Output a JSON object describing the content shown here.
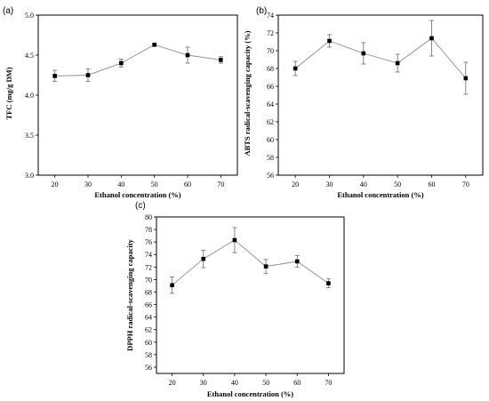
{
  "figure": {
    "marker_color": "#000000",
    "line_color": "#8c8c8c",
    "error_bar_color": "#555555"
  },
  "chart_data": [
    {
      "panel": "(a)",
      "type": "line",
      "xlabel": "Ethanol concentration (%)",
      "ylabel": "TFC (mg/g DM)",
      "xlim": [
        15,
        75
      ],
      "ylim": [
        3.0,
        5.0
      ],
      "x_ticks": [
        20,
        30,
        40,
        50,
        60,
        70
      ],
      "y_ticks": [
        3.0,
        3.5,
        4.0,
        4.5,
        5.0
      ],
      "y_tick_labels": [
        "3.0",
        "3.5",
        "4.0",
        "4.5",
        "5.0"
      ],
      "series": [
        {
          "x": [
            20,
            30,
            40,
            50,
            60,
            70
          ],
          "values": [
            4.24,
            4.25,
            4.4,
            4.63,
            4.5,
            4.44
          ],
          "errors": [
            0.07,
            0.08,
            0.05,
            0.02,
            0.1,
            0.04
          ]
        }
      ]
    },
    {
      "panel": "(b)",
      "type": "line",
      "xlabel": "Ethanol concentration (%)",
      "ylabel": "ABTS radical-scavenging capacity (%)",
      "xlim": [
        15,
        75
      ],
      "ylim": [
        56,
        74
      ],
      "x_ticks": [
        20,
        30,
        40,
        50,
        60,
        70
      ],
      "y_ticks": [
        56,
        58,
        60,
        62,
        64,
        66,
        68,
        70,
        72,
        74
      ],
      "y_tick_labels": [
        "56",
        "58",
        "60",
        "62",
        "64",
        "66",
        "68",
        "70",
        "72",
        "74"
      ],
      "series": [
        {
          "x": [
            20,
            30,
            40,
            50,
            60,
            70
          ],
          "values": [
            68.0,
            71.1,
            69.7,
            68.6,
            71.4,
            66.9
          ],
          "errors": [
            0.8,
            0.7,
            1.2,
            1.0,
            2.0,
            1.8
          ]
        }
      ]
    },
    {
      "panel": "(c)",
      "type": "line",
      "xlabel": "Ethanol concentration (%)",
      "ylabel": "DPPH radical-scavenging capacity",
      "xlim": [
        15,
        75
      ],
      "ylim": [
        55,
        80
      ],
      "x_ticks": [
        20,
        30,
        40,
        50,
        60,
        70
      ],
      "y_ticks": [
        56,
        58,
        60,
        62,
        64,
        66,
        68,
        70,
        72,
        74,
        76,
        78,
        80
      ],
      "y_tick_labels": [
        "56",
        "58",
        "60",
        "62",
        "64",
        "66",
        "68",
        "70",
        "72",
        "74",
        "76",
        "78",
        "80"
      ],
      "series": [
        {
          "x": [
            20,
            30,
            40,
            50,
            60,
            70
          ],
          "values": [
            69.1,
            73.3,
            76.3,
            72.1,
            72.9,
            69.4
          ],
          "errors": [
            1.3,
            1.4,
            2.0,
            1.1,
            0.9,
            0.7
          ]
        }
      ]
    }
  ]
}
